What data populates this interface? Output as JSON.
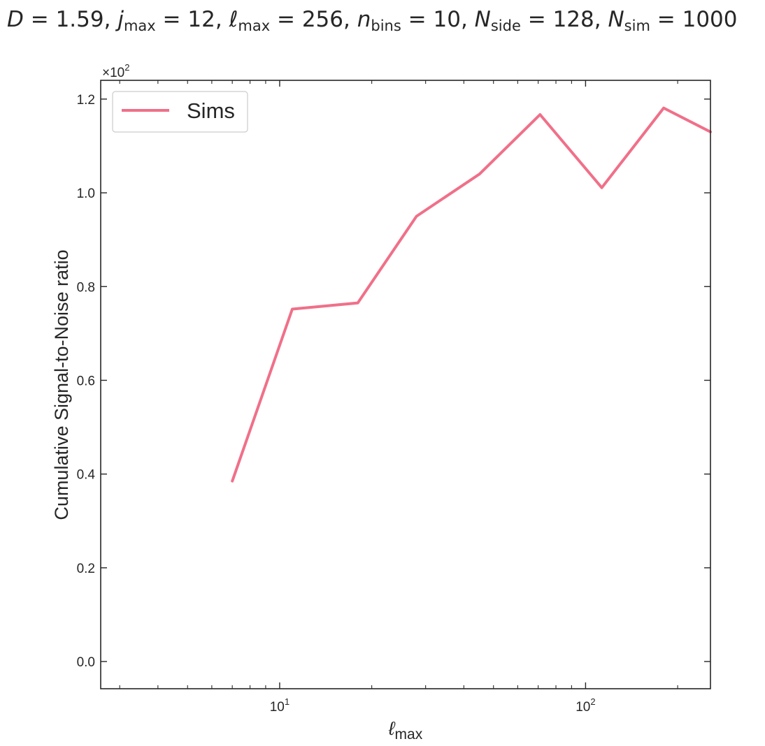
{
  "chart_data": {
    "type": "line",
    "title": "D = 1.59,  jmax = 12,  ℓmax = 256,  nbins = 10,  Nside = 128, Nsim = 1000",
    "title_parts": {
      "D": "1.59",
      "j_max": "12",
      "l_max": "256",
      "n_bins": "10",
      "N_side": "128",
      "N_sim": "1000"
    },
    "xlabel": "ℓmax",
    "ylabel": "Cumulative Signal-to-Noise ratio",
    "x_scale": "log",
    "xlim": [
      2.6,
      256
    ],
    "ylim": [
      -0.058,
      1.24
    ],
    "y_offset_label": "×10²",
    "y_ticks": [
      0.0,
      0.2,
      0.4,
      0.6,
      0.8,
      1.0,
      1.2
    ],
    "y_tick_labels": [
      "0.0",
      "0.2",
      "0.4",
      "0.6",
      "0.8",
      "1.0",
      "1.2"
    ],
    "x_major_ticks": [
      10,
      100
    ],
    "x_tick_labels": [
      "10¹",
      "10²"
    ],
    "x_minor_ticks": [
      3,
      4,
      5,
      6,
      7,
      8,
      9,
      20,
      30,
      40,
      50,
      60,
      70,
      80,
      90,
      200
    ],
    "grid": false,
    "legend_position": "top-left",
    "series": [
      {
        "name": "Sims",
        "color": "#f07089",
        "x": [
          7,
          11,
          18,
          28,
          45,
          71,
          113,
          180,
          256
        ],
        "y": [
          0.385,
          0.752,
          0.765,
          0.95,
          1.04,
          1.167,
          1.011,
          1.181,
          1.13
        ]
      }
    ]
  }
}
